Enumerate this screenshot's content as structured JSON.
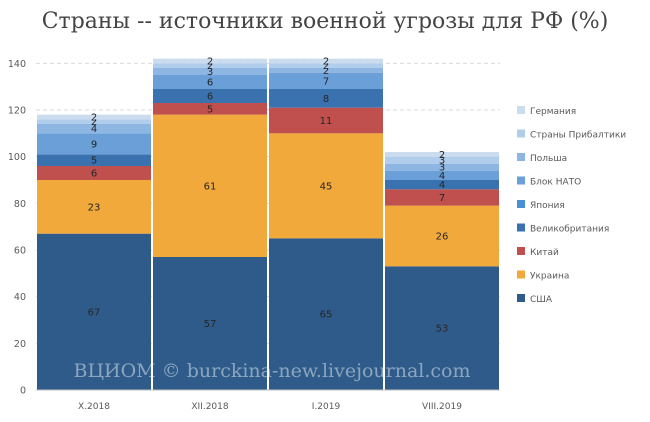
{
  "chart_data": {
    "type": "bar",
    "stacked": true,
    "title": "Страны -- источники военной угрозы для РФ (%)",
    "categories": [
      "X.2018",
      "XII.2018",
      "I.2019",
      "VIII.2019"
    ],
    "ylim": [
      0,
      150
    ],
    "yticks": [
      0,
      20,
      40,
      60,
      80,
      100,
      120,
      140
    ],
    "grid": true,
    "legend_position": "right",
    "series": [
      {
        "name": "США",
        "values": [
          67,
          57,
          65,
          53
        ],
        "color": "#2e5b8a"
      },
      {
        "name": "Украина",
        "values": [
          23,
          61,
          45,
          26
        ],
        "color": "#f2a93b"
      },
      {
        "name": "Китай",
        "values": [
          6,
          5,
          11,
          7
        ],
        "color": "#c0504d"
      },
      {
        "name": "Великобритания",
        "values": [
          5,
          6,
          8,
          4
        ],
        "color": "#3a72b0"
      },
      {
        "name": "Япония",
        "values": [
          0,
          0,
          0,
          0
        ],
        "color": "#4a8fd4"
      },
      {
        "name": "Блок НАТО",
        "values": [
          9,
          6,
          7,
          4
        ],
        "color": "#6a9fd8"
      },
      {
        "name": "Польша",
        "values": [
          4,
          3,
          2,
          3
        ],
        "color": "#8eb6e2"
      },
      {
        "name": "Страны Прибалтики",
        "values": [
          2,
          2,
          2,
          3
        ],
        "color": "#b1cdec"
      },
      {
        "name": "Германия",
        "values": [
          2,
          2,
          2,
          2
        ],
        "color": "#ccdcef"
      }
    ],
    "watermark": "ВЦИОМ © burckina-new.livejournal.com"
  }
}
